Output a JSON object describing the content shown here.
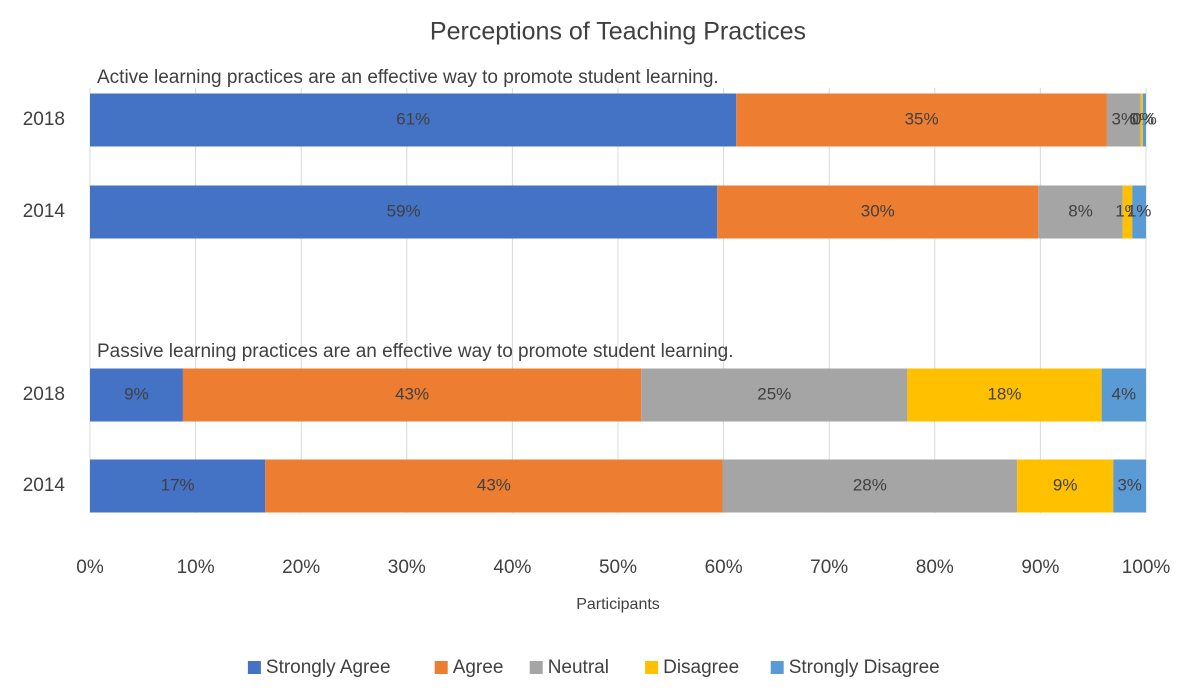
{
  "chart_data": {
    "type": "stacked_bar_horizontal",
    "title": "Perceptions of Teaching Practices",
    "x_label": "Participants",
    "annotations": [
      "Active learning practices are an effective way to promote student learning.",
      "Passive learning practices are an effective way to promote student learning."
    ],
    "categories": [
      "2018",
      "2014",
      "2018",
      "2014"
    ],
    "series": [
      {
        "name": "Strongly Agree",
        "color": "#4472c4",
        "values": [
          61.2,
          59.4,
          8.8,
          16.6
        ],
        "value_labels": [
          "61%",
          "59%",
          "9%",
          "17%"
        ]
      },
      {
        "name": "Agree",
        "color": "#ed7d31",
        "values": [
          35.1,
          30.4,
          43.4,
          43.3
        ],
        "value_labels": [
          "35%",
          "30%",
          "43%",
          "43%"
        ]
      },
      {
        "name": "Neutral",
        "color": "#a5a5a5",
        "values": [
          3.2,
          8.0,
          25.2,
          27.9
        ],
        "value_labels": [
          "3%",
          "8%",
          "25%",
          "28%"
        ]
      },
      {
        "name": "Disagree",
        "color": "#ffc000",
        "values": [
          0.2,
          0.9,
          18.4,
          9.1
        ],
        "value_labels": [
          "0%",
          "1%",
          "18%",
          "9%"
        ]
      },
      {
        "name": "Strongly Disagree",
        "color": "#5b9bd5",
        "values": [
          0.3,
          1.3,
          4.2,
          3.1
        ],
        "value_labels": [
          "0%",
          "1%",
          "4%",
          "3%"
        ]
      }
    ],
    "xlim": [
      0,
      100
    ],
    "xticks": [
      {
        "value": 0,
        "label": "0%"
      },
      {
        "value": 10,
        "label": "10%"
      },
      {
        "value": 20,
        "label": "20%"
      },
      {
        "value": 30,
        "label": "30%"
      },
      {
        "value": 40,
        "label": "40%"
      },
      {
        "value": 50,
        "label": "50%"
      },
      {
        "value": 60,
        "label": "60%"
      },
      {
        "value": 70,
        "label": "70%"
      },
      {
        "value": 80,
        "label": "80%"
      },
      {
        "value": 90,
        "label": "90%"
      },
      {
        "value": 100,
        "label": "100%"
      }
    ],
    "grid": true,
    "legend": "bottom"
  }
}
